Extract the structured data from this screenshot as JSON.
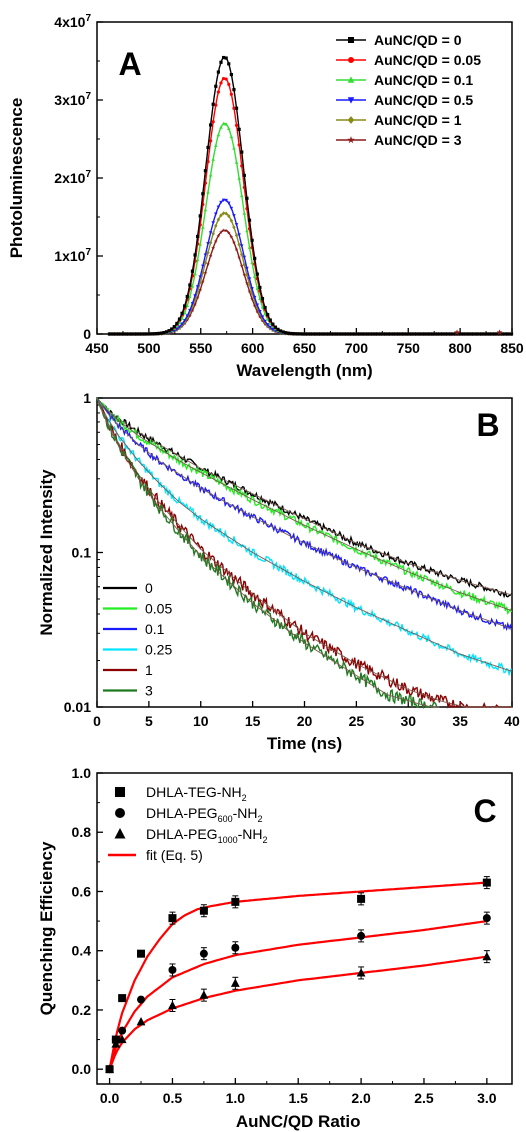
{
  "chart_data": [
    {
      "panel_label": "A",
      "type": "line",
      "xlabel": "Wavelength (nm)",
      "ylabel": "Photoluminescence",
      "xlim": [
        450,
        850
      ],
      "ylim": [
        0,
        40000000
      ],
      "xticks": [
        450,
        500,
        550,
        600,
        650,
        700,
        750,
        800,
        850
      ],
      "xtick_labels": [
        "450",
        "500",
        "550",
        "600",
        "650",
        "700",
        "750",
        "800",
        "850"
      ],
      "yticks": [
        0,
        10000000,
        20000000,
        30000000,
        40000000
      ],
      "ytick_labels": [
        {
          "base": "0",
          "exp": ""
        },
        {
          "base": "1x10",
          "exp": "7"
        },
        {
          "base": "2x10",
          "exp": "7"
        },
        {
          "base": "3x10",
          "exp": "7"
        },
        {
          "base": "4x10",
          "exp": "7"
        }
      ],
      "peak_wavelength_nm": 573,
      "peak_sigma_nm": 18,
      "legend_position": "top-right",
      "series": [
        {
          "name": "AuNC/QD = 0",
          "color": "#000000",
          "marker": "square",
          "peak": 35500000
        },
        {
          "name": "AuNC/QD = 0.05",
          "color": "#ff0000",
          "marker": "circle",
          "peak": 32800000
        },
        {
          "name": "AuNC/QD = 0.1",
          "color": "#33dd33",
          "marker": "triangle-up",
          "peak": 27000000
        },
        {
          "name": "AuNC/QD = 0.5",
          "color": "#1a1aff",
          "marker": "triangle-down",
          "peak": 17200000
        },
        {
          "name": "AuNC/QD = 1",
          "color": "#8a8a1a",
          "marker": "diamond",
          "peak": 15500000
        },
        {
          "name": "AuNC/QD = 3",
          "color": "#8b1a1a",
          "marker": "star",
          "peak": 13300000
        }
      ]
    },
    {
      "panel_label": "B",
      "type": "line",
      "scale_y": "log",
      "xlabel": "Time (ns)",
      "ylabel": "Normalized Intensity",
      "xlim": [
        0,
        40
      ],
      "ylim": [
        0.01,
        1
      ],
      "xticks": [
        0,
        5,
        10,
        15,
        20,
        25,
        30,
        35,
        40
      ],
      "xtick_labels": [
        "0",
        "5",
        "10",
        "15",
        "20",
        "25",
        "30",
        "35",
        "40"
      ],
      "yticks": [
        0.01,
        0.1,
        1
      ],
      "ytick_labels": [
        "0.01",
        "0.1",
        "1"
      ],
      "legend_position": "bottom-left",
      "series": [
        {
          "name": "0",
          "color": "#000000",
          "x": [
            0,
            1,
            2,
            4,
            6,
            8,
            10,
            15,
            20,
            25,
            30,
            35,
            40
          ],
          "y": [
            1,
            0.84,
            0.74,
            0.6,
            0.5,
            0.42,
            0.35,
            0.24,
            0.165,
            0.115,
            0.085,
            0.066,
            0.053
          ]
        },
        {
          "name": "0.05",
          "color": "#22ee22",
          "x": [
            0,
            1,
            2,
            4,
            6,
            8,
            10,
            15,
            20,
            25,
            30,
            35,
            40
          ],
          "y": [
            1,
            0.83,
            0.72,
            0.57,
            0.47,
            0.39,
            0.33,
            0.22,
            0.15,
            0.105,
            0.075,
            0.055,
            0.042
          ]
        },
        {
          "name": "0.1",
          "color": "#1a1aff",
          "x": [
            0,
            1,
            2,
            4,
            6,
            8,
            10,
            15,
            20,
            25,
            30,
            35,
            40
          ],
          "y": [
            1,
            0.8,
            0.67,
            0.5,
            0.39,
            0.32,
            0.26,
            0.17,
            0.115,
            0.08,
            0.058,
            0.042,
            0.032
          ]
        },
        {
          "name": "0.25",
          "color": "#00e5ff",
          "x": [
            0,
            1,
            2,
            4,
            6,
            8,
            10,
            15,
            20,
            25,
            30,
            35,
            40
          ],
          "y": [
            1,
            0.74,
            0.58,
            0.39,
            0.28,
            0.21,
            0.165,
            0.1,
            0.065,
            0.044,
            0.031,
            0.022,
            0.017
          ]
        },
        {
          "name": "1",
          "color": "#8b0000",
          "x": [
            0,
            1,
            2,
            4,
            6,
            8,
            10,
            15,
            20,
            25,
            30,
            33,
            36,
            38,
            40
          ],
          "y": [
            1,
            0.7,
            0.52,
            0.32,
            0.21,
            0.148,
            0.105,
            0.054,
            0.03,
            0.019,
            0.013,
            0.011,
            0.0098,
            0.0095,
            0.0093
          ]
        },
        {
          "name": "3",
          "color": "#1f7a1f",
          "x": [
            0,
            1,
            2,
            4,
            6,
            8,
            10,
            15,
            20,
            25,
            28,
            31,
            33
          ],
          "y": [
            1,
            0.68,
            0.5,
            0.3,
            0.195,
            0.135,
            0.095,
            0.047,
            0.026,
            0.016,
            0.012,
            0.0105,
            0.0097
          ]
        }
      ]
    },
    {
      "panel_label": "C",
      "type": "scatter",
      "xlabel": "AuNC/QD Ratio",
      "ylabel": "Quenching Efficiency",
      "xlim": [
        -0.1,
        3.2
      ],
      "ylim": [
        -0.05,
        1.0
      ],
      "xticks": [
        0,
        0.5,
        1,
        1.5,
        2,
        2.5,
        3
      ],
      "xtick_labels": [
        "0.0",
        "0.5",
        "1.0",
        "1.5",
        "2.0",
        "2.5",
        "3.0"
      ],
      "yticks": [
        0,
        0.2,
        0.4,
        0.6,
        0.8,
        1.0
      ],
      "ytick_labels": [
        "0.0",
        "0.2",
        "0.4",
        "0.6",
        "0.8",
        "1.0"
      ],
      "legend_position": "top-left",
      "series": [
        {
          "name": "DHLA-TEG-NH",
          "sub": "2",
          "marker": "square",
          "x": [
            0,
            0.05,
            0.1,
            0.25,
            0.5,
            0.75,
            1.0,
            2.0,
            3.0
          ],
          "y": [
            0,
            0.1,
            0.24,
            0.39,
            0.51,
            0.535,
            0.565,
            0.575,
            0.63
          ]
        },
        {
          "name_parts": [
            "DHLA-PEG",
            "600",
            "-NH",
            "2"
          ],
          "marker": "circle",
          "x": [
            0,
            0.05,
            0.1,
            0.25,
            0.5,
            0.75,
            1.0,
            2.0,
            3.0
          ],
          "y": [
            0,
            0.1,
            0.13,
            0.235,
            0.335,
            0.39,
            0.41,
            0.45,
            0.51
          ]
        },
        {
          "name_parts": [
            "DHLA-PEG",
            "1000",
            "-NH",
            "2"
          ],
          "marker": "triangle",
          "x": [
            0,
            0.05,
            0.1,
            0.25,
            0.5,
            0.75,
            1.0,
            2.0,
            3.0
          ],
          "y": [
            0,
            0.085,
            0.1,
            0.16,
            0.215,
            0.25,
            0.29,
            0.325,
            0.38
          ]
        },
        {
          "name": "fit (Eq. 5)",
          "color": "#ff0000",
          "fits": [
            {
              "x": [
                0,
                0.05,
                0.1,
                0.2,
                0.3,
                0.4,
                0.5,
                0.6,
                0.7,
                0.8,
                1.0,
                1.5,
                2.0,
                2.5,
                3.0
              ],
              "y": [
                0,
                0.11,
                0.19,
                0.3,
                0.38,
                0.44,
                0.49,
                0.52,
                0.54,
                0.55,
                0.565,
                0.585,
                0.6,
                0.615,
                0.63
              ]
            },
            {
              "x": [
                0,
                0.05,
                0.1,
                0.2,
                0.3,
                0.5,
                0.75,
                1.0,
                1.5,
                2.0,
                2.5,
                3.0
              ],
              "y": [
                0,
                0.075,
                0.125,
                0.195,
                0.245,
                0.31,
                0.355,
                0.385,
                0.42,
                0.445,
                0.47,
                0.5
              ]
            },
            {
              "x": [
                0,
                0.05,
                0.1,
                0.2,
                0.3,
                0.5,
                0.75,
                1.0,
                1.5,
                2.0,
                2.5,
                3.0
              ],
              "y": [
                0,
                0.055,
                0.09,
                0.135,
                0.165,
                0.205,
                0.24,
                0.265,
                0.3,
                0.325,
                0.35,
                0.38
              ]
            }
          ]
        }
      ]
    }
  ]
}
